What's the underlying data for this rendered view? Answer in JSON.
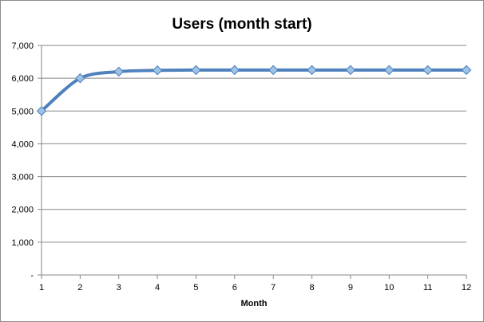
{
  "chart_data": {
    "type": "line",
    "title": "Users (month start)",
    "xlabel": "Month",
    "ylabel": "",
    "x": [
      1,
      2,
      3,
      4,
      5,
      6,
      7,
      8,
      9,
      10,
      11,
      12
    ],
    "x_tick_labels": [
      "1",
      "2",
      "3",
      "4",
      "5",
      "6",
      "7",
      "8",
      "9",
      "10",
      "11",
      "12"
    ],
    "ylim": [
      0,
      7000
    ],
    "y_ticks": [
      0,
      1000,
      2000,
      3000,
      4000,
      5000,
      6000,
      7000
    ],
    "y_tick_labels": [
      "-",
      "1,000",
      "2,000",
      "3,000",
      "4,000",
      "5,000",
      "6,000",
      "7,000"
    ],
    "grid": "horizontal",
    "legend": "none",
    "series": [
      {
        "values": [
          5000,
          6000,
          6200,
          6240,
          6250,
          6250,
          6250,
          6250,
          6250,
          6250,
          6250,
          6250
        ],
        "color": "#4f81bd",
        "marker": "diamond",
        "marker_color": "#9dc3e6"
      }
    ]
  }
}
